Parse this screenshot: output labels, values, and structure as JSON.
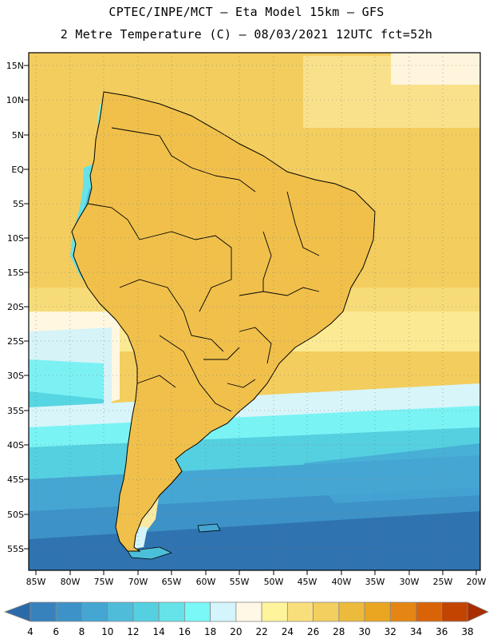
{
  "header": {
    "line1": "CPTEC/INPE/MCT –  Eta Model 15km – GFS",
    "line2": "2 Metre Temperature (C) – 08/03/2021 12UTC fct=52h"
  },
  "axes": {
    "lat_labels": [
      "15N",
      "10N",
      "5N",
      "EQ",
      "5S",
      "10S",
      "15S",
      "20S",
      "25S",
      "30S",
      "35S",
      "40S",
      "45S",
      "50S",
      "55S"
    ],
    "lon_labels": [
      "85W",
      "80W",
      "75W",
      "70W",
      "65W",
      "60W",
      "55W",
      "50W",
      "45W",
      "40W",
      "35W",
      "30W",
      "25W",
      "20W"
    ]
  },
  "colorbar": {
    "labels": [
      "4",
      "6",
      "8",
      "10",
      "12",
      "14",
      "16",
      "18",
      "20",
      "22",
      "24",
      "26",
      "28",
      "30",
      "32",
      "34",
      "36",
      "38"
    ],
    "colors": [
      "#2b6aa8",
      "#3782bd",
      "#3d93c7",
      "#45a6d3",
      "#4fbcd9",
      "#55d0e0",
      "#66e3e8",
      "#7af7f7",
      "#d3f5fb",
      "#fff8e6",
      "#fff39b",
      "#f9df7c",
      "#f2cf5e",
      "#ecbb3c",
      "#eaa620",
      "#e58614",
      "#d96408",
      "#c24400",
      "#a82d00"
    ]
  }
}
